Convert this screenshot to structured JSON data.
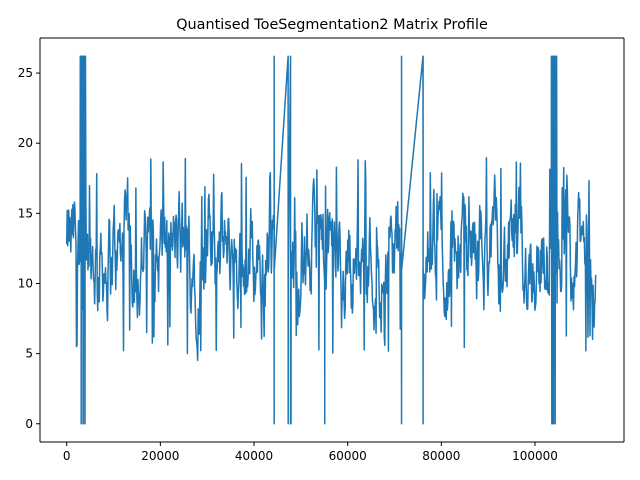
{
  "chart_data": {
    "type": "line",
    "title": "Quantised ToeSegmentation2 Matrix Profile",
    "xlabel": "",
    "ylabel": "",
    "xlim": [
      -5700,
      119000
    ],
    "ylim": [
      -1.3,
      27.5
    ],
    "x_ticks": [
      0,
      20000,
      40000,
      60000,
      80000,
      100000
    ],
    "y_ticks": [
      0,
      5,
      10,
      15,
      20,
      25
    ],
    "grid": false,
    "legend": "none",
    "series": [
      {
        "color": "#1f77b4",
        "profile": {
          "x_start": 0,
          "x_end": 113000,
          "noise_min": 4.5,
          "noise_max": 19.5,
          "noise_mean": 12,
          "min_value": 0,
          "max_value": 26.2,
          "zero_dips": [
            {
              "x": 3100,
              "value": 0
            },
            {
              "x": 3500,
              "value": 0
            },
            {
              "x": 3900,
              "value": 0
            },
            {
              "x": 44300,
              "value": 0
            },
            {
              "x": 47300,
              "value": 0
            },
            {
              "x": 47900,
              "value": 0
            },
            {
              "x": 55100,
              "value": 0
            },
            {
              "x": 71500,
              "value": 0
            },
            {
              "x": 76100,
              "value": 0
            },
            {
              "x": 103800,
              "value": 0
            },
            {
              "x": 104300,
              "value": 0
            }
          ],
          "plateaus": [
            {
              "x_start": 44300,
              "x_end": 47800,
              "value": 26.2
            },
            {
              "x_start": 71500,
              "x_end": 76100,
              "value": 26.2
            }
          ],
          "spike_clusters": [
            {
              "x_start": 2900,
              "x_end": 4100,
              "high": 26.2,
              "low": 0
            },
            {
              "x_start": 103500,
              "x_end": 104700,
              "high": 26.2,
              "low": 0
            }
          ]
        }
      }
    ]
  }
}
